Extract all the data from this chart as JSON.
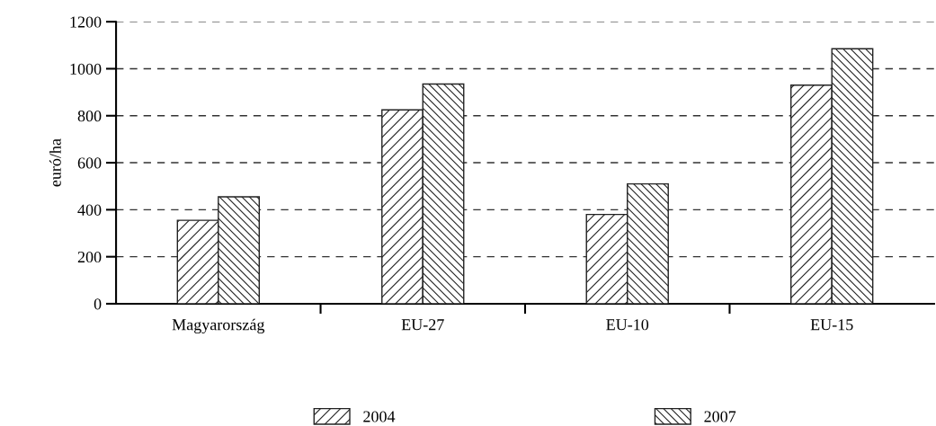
{
  "chart_data": {
    "type": "bar",
    "ylabel": "euró/ha",
    "categories": [
      "Magyarország",
      "EU-27",
      "EU-10",
      "EU-15"
    ],
    "series": [
      {
        "name": "2004",
        "color": "#222222",
        "values": [
          355,
          825,
          380,
          930
        ]
      },
      {
        "name": "2007",
        "color": "#222222",
        "values": [
          455,
          935,
          510,
          1085
        ]
      }
    ],
    "ylim": [
      0,
      1200
    ],
    "yticks": [
      0,
      200,
      400,
      600,
      800,
      1000,
      1200
    ],
    "grid": "y",
    "legend": "bottom"
  }
}
